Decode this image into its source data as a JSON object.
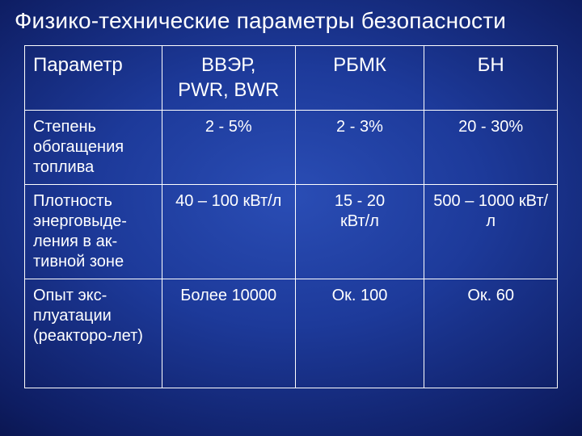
{
  "title": "Физико-технические параметры безопасности",
  "table": {
    "type": "table",
    "background_color": "radial-blue",
    "border_color": "#ffffff",
    "text_color": "#ffffff",
    "title_fontsize": 28,
    "header_fontsize": 24,
    "cell_fontsize": 20,
    "columns": [
      {
        "label": "Параметр",
        "width": 170,
        "align": "left"
      },
      {
        "label_line1": "ВВЭР,",
        "label_line2": "PWR, BWR",
        "width": 165,
        "align": "center"
      },
      {
        "label": "РБМК",
        "width": 160,
        "align": "center"
      },
      {
        "label": "БН",
        "width": 165,
        "align": "center"
      }
    ],
    "rows": [
      {
        "param": "Степень обогащения топлива",
        "a": "2 - 5%",
        "b": "2 - 3%",
        "c": "20 - 30%"
      },
      {
        "param": "Плотность энерговыде-ления в ак-тивной зоне",
        "a": "40 – 100 кВт/л",
        "b_line1": "15 - 20",
        "b_line2": "кВт/л",
        "c": "500 – 1000 кВт/л"
      },
      {
        "param": "Опыт экс-плуатации (реакторо-лет)",
        "a": "Более 10000",
        "b": "Ок. 100",
        "c": "Ок. 60"
      }
    ]
  }
}
